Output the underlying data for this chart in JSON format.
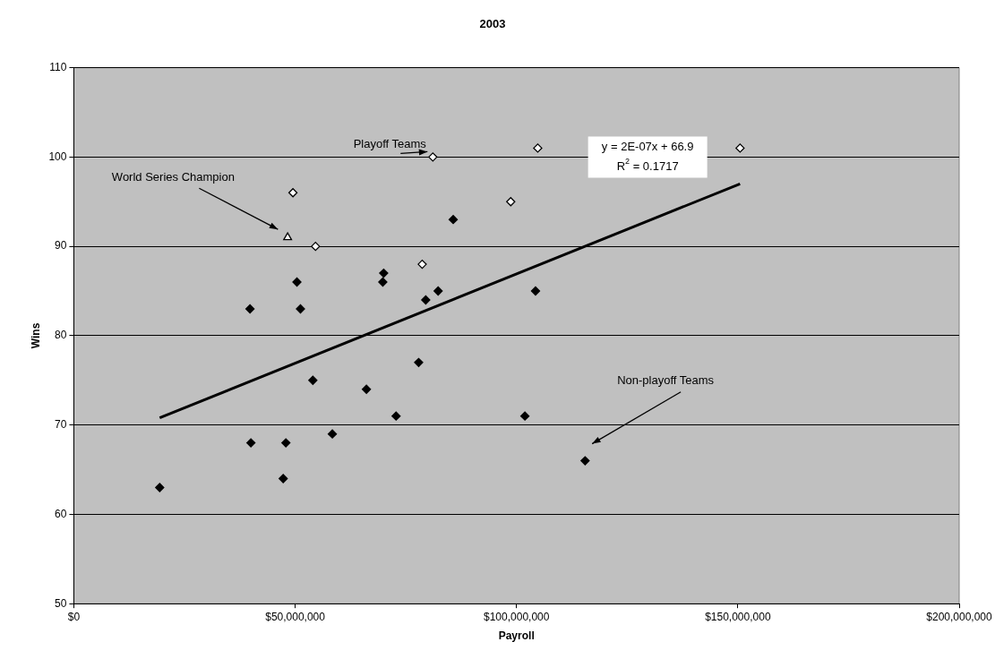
{
  "chart_data": {
    "type": "scatter",
    "title": "2003",
    "xlabel": "Payroll",
    "ylabel": "Wins",
    "series": [
      {
        "color": "#ffffff",
        "marker": "diamond",
        "x": [
          81100000,
          104800000,
          150500000,
          49500000,
          98700000,
          54600000,
          78700000
        ],
        "values": [
          100,
          101,
          101,
          96,
          95,
          90,
          88
        ]
      },
      {
        "color": "#ffffff",
        "marker": "triangle",
        "x": [
          48300000
        ],
        "values": [
          91
        ]
      },
      {
        "color": "#000000",
        "marker": "diamond",
        "x": [
          19400000,
          39800000,
          50400000,
          51200000,
          70000000,
          69800000,
          79500000,
          82300000,
          85700000,
          54000000,
          66100000,
          77900000,
          72800000,
          58400000,
          40000000,
          47900000,
          47300000,
          104300000,
          101900000,
          115500000
        ],
        "values": [
          63,
          83,
          86,
          83,
          87,
          86,
          84,
          85,
          93,
          75,
          74,
          77,
          71,
          69,
          68,
          68,
          64,
          85,
          71,
          66
        ]
      },
      {
        "type": "line",
        "color": "#000000",
        "marker": "none",
        "x": [
          19400000,
          150500000
        ],
        "values": [
          70.8,
          97.0
        ]
      }
    ],
    "xlim": [
      0,
      200000000
    ],
    "xticks": [
      {
        "value": 0,
        "label": "$0"
      },
      {
        "value": 50000000,
        "label": "$50,000,000"
      },
      {
        "value": 100000000,
        "label": "$100,000,000"
      },
      {
        "value": 150000000,
        "label": "$150,000,000"
      },
      {
        "value": 200000000,
        "label": "$200,000,000"
      }
    ],
    "ylim": [
      50,
      110
    ],
    "yticks": [
      50,
      60,
      70,
      80,
      90,
      100,
      110
    ],
    "grid": "y",
    "legend": false,
    "annotations": [
      "Playoff Teams",
      "World Series Champion",
      "Non-playoff Teams",
      "y = 2E-07x + 66.9",
      "R$^{2}$ = 0.1717"
    ]
  }
}
